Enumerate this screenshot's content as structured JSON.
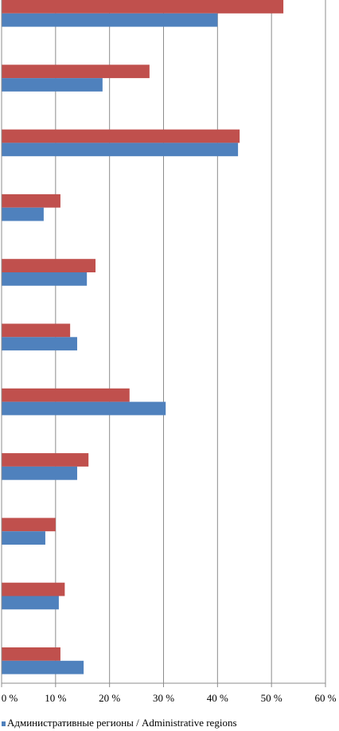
{
  "chart_data": {
    "type": "barh",
    "categories": [
      null,
      null,
      null,
      null,
      null,
      null,
      null,
      null,
      null,
      null,
      null
    ],
    "series": [
      {
        "name": "Административные регионы / Administrative regions",
        "color": "#4f81bd",
        "values": [
          40.0,
          18.7,
          43.8,
          7.8,
          15.8,
          14.0,
          30.4,
          14.0,
          8.1,
          10.6,
          15.2
        ]
      },
      {
        "color": "#c0504d",
        "values": [
          52.2,
          27.4,
          44.1,
          10.9,
          17.4,
          12.7,
          23.7,
          16.1,
          10.0,
          11.7,
          10.9
        ]
      }
    ],
    "xlim": [
      0,
      60
    ],
    "xticks": [
      {
        "value": 0,
        "label": "0 %"
      },
      {
        "value": 10,
        "label": "10 %"
      },
      {
        "value": 20,
        "label": "20 %"
      },
      {
        "value": 30,
        "label": "30 %"
      },
      {
        "value": 40,
        "label": "40 %"
      },
      {
        "value": 50,
        "label": "50 %"
      },
      {
        "value": 60,
        "label": "60 %"
      }
    ],
    "grid": true
  }
}
